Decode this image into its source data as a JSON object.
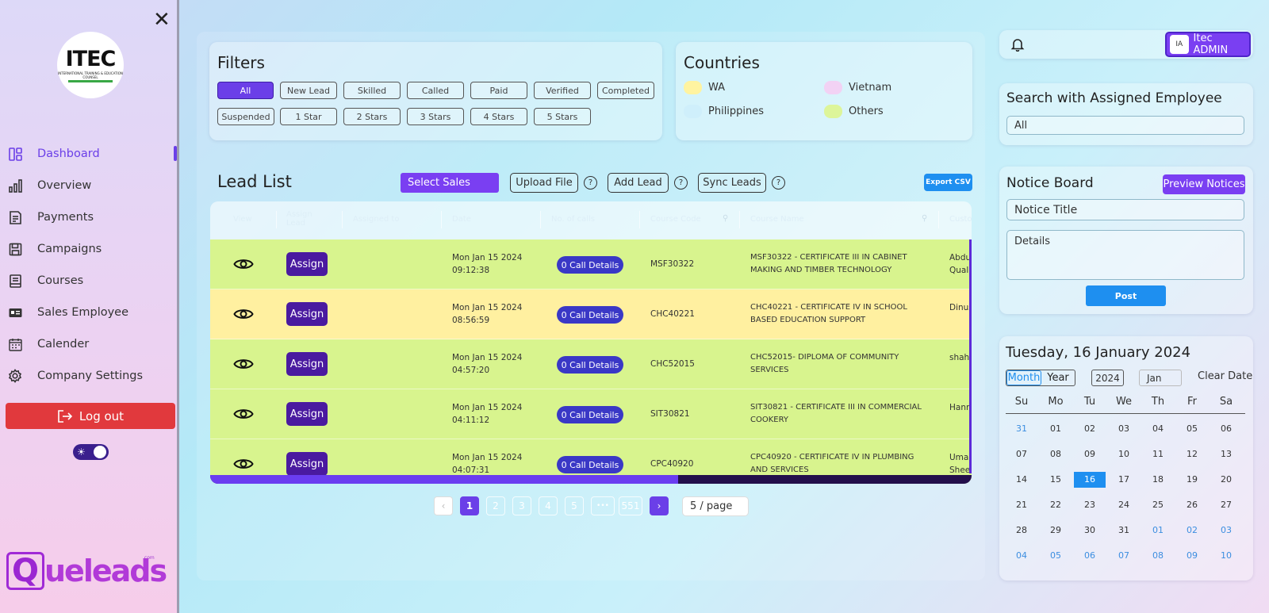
{
  "sidebar": {
    "logo": {
      "main": "ITEC",
      "sub": "INTERNATIONAL TRAINING & EDUCATION COUNSEL"
    },
    "items": [
      {
        "label": "Dashboard",
        "icon": "dashboard-icon",
        "active": true
      },
      {
        "label": "Overview",
        "icon": "bar-chart-icon"
      },
      {
        "label": "Payments",
        "icon": "invoice-icon"
      },
      {
        "label": "Campaigns",
        "icon": "save-icon"
      },
      {
        "label": "Courses",
        "icon": "book-icon"
      },
      {
        "label": "Sales Employee",
        "icon": "id-card-icon"
      },
      {
        "label": "Calender",
        "icon": "calendar-icon"
      },
      {
        "label": "Company Settings",
        "icon": "gear-icon"
      }
    ],
    "logout_label": "Log out",
    "brand": {
      "q": "Q",
      "text": "ueleads",
      "sup": ".com"
    }
  },
  "filters": {
    "title": "Filters",
    "chips": [
      "All",
      "New Lead",
      "Skilled",
      "Called",
      "Paid",
      "Verified",
      "Completed",
      "Suspended",
      "1 Star",
      "2 Stars",
      "3 Stars",
      "4 Stars",
      "5 Stars"
    ]
  },
  "countries": {
    "title": "Countries",
    "items": [
      {
        "label": "WA",
        "color": "#fff3a0"
      },
      {
        "label": "Vietnam",
        "color": "#f2d2f4"
      },
      {
        "label": "Philippines",
        "color": "#cfeffb"
      },
      {
        "label": "Others",
        "color": "#ddf59a"
      }
    ]
  },
  "lead_list": {
    "title": "Lead List",
    "select_sales": "Select Sales",
    "upload_file": "Upload File",
    "add_lead": "Add Lead",
    "sync_leads": "Sync Leads",
    "help": "?",
    "export_csv": "Export CSV",
    "columns": [
      "View",
      "Assign Lead",
      "Assigned to",
      "Date",
      "No. of calls",
      "Course Code",
      "Course Name",
      "Custo"
    ],
    "assign_label": "Assign",
    "rows": [
      {
        "color": "green",
        "date1": "Mon Jan 15 2024",
        "date2": "09:12:38",
        "calls": "0  Call Details",
        "code": "MSF30322",
        "course": "MSF30322 - CERTIFICATE III IN CABINET MAKING AND TIMBER TECHNOLOGY",
        "cust1": "Abdu",
        "cust2": "Qual"
      },
      {
        "color": "yellow",
        "date1": "Mon Jan 15 2024",
        "date2": "08:56:59",
        "calls": "0  Call Details",
        "code": "CHC40221",
        "course": "CHC40221 - CERTIFICATE IV IN SCHOOL BASED EDUCATION SUPPORT",
        "cust1": "Dinus",
        "cust2": ""
      },
      {
        "color": "green",
        "date1": "Mon Jan 15 2024",
        "date2": "04:57:20",
        "calls": "0  Call Details",
        "code": "CHC52015",
        "course": "CHC52015- DIPLOMA OF COMMUNITY SERVICES",
        "cust1": "shah",
        "cust2": ""
      },
      {
        "color": "green",
        "date1": "Mon Jan 15 2024",
        "date2": "04:11:12",
        "calls": "0  Call Details",
        "code": "SIT30821",
        "course": "SIT30821 - CERTIFICATE III IN COMMERCIAL COOKERY",
        "cust1": "Hann",
        "cust2": ""
      },
      {
        "color": "green",
        "date1": "Mon Jan 15 2024",
        "date2": "04:07:31",
        "calls": "0  Call Details",
        "code": "CPC40920",
        "course": "CPC40920 - CERTIFICATE IV IN PLUMBING AND SERVICES",
        "cust1": "Umar",
        "cust2": "Shee"
      }
    ]
  },
  "pagination": {
    "prev": "‹",
    "next": "›",
    "pages": [
      "1",
      "2",
      "3",
      "4",
      "5",
      "•••",
      "551"
    ],
    "current": "1",
    "page_size": "5 / page"
  },
  "header": {
    "user_initials": "IA",
    "user_name": "Itec ADMIN"
  },
  "search_employee": {
    "title": "Search with Assigned Employee",
    "value": "All"
  },
  "notice_board": {
    "title": "Notice Board",
    "preview_label": "Preview Notices",
    "title_placeholder": "Notice Title",
    "details_placeholder": "Details",
    "post_label": "Post"
  },
  "calendar": {
    "title": "Tuesday, 16 January 2024",
    "mode_month": "Month",
    "mode_year": "Year",
    "year": "2024",
    "month": "Jan",
    "clear_label": "Clear Date",
    "weekdays": [
      "Su",
      "Mo",
      "Tu",
      "We",
      "Th",
      "Fr",
      "Sa"
    ],
    "weeks": [
      [
        "31",
        "01",
        "02",
        "03",
        "04",
        "05",
        "06"
      ],
      [
        "07",
        "08",
        "09",
        "10",
        "11",
        "12",
        "13"
      ],
      [
        "14",
        "15",
        "16",
        "17",
        "18",
        "19",
        "20"
      ],
      [
        "21",
        "22",
        "23",
        "24",
        "25",
        "26",
        "27"
      ],
      [
        "28",
        "29",
        "30",
        "31",
        "01",
        "02",
        "03"
      ],
      [
        "04",
        "05",
        "06",
        "07",
        "08",
        "09",
        "10"
      ]
    ],
    "selected": "16"
  }
}
